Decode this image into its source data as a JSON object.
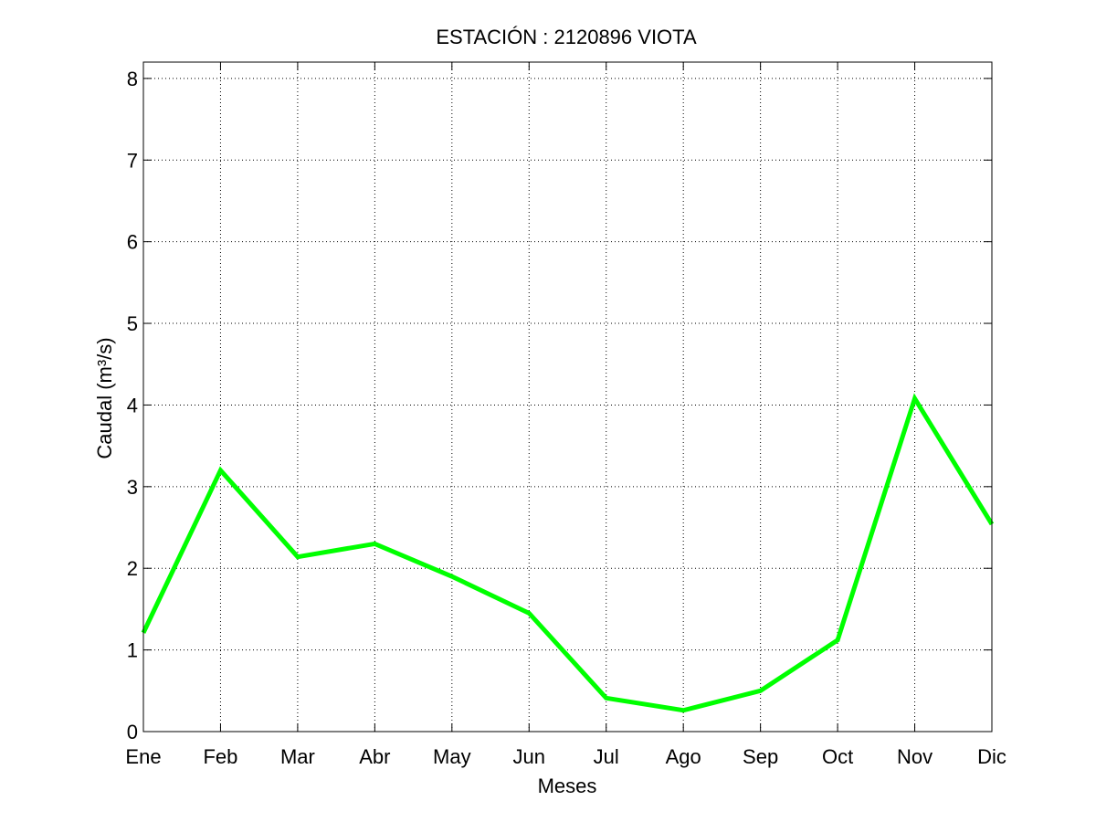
{
  "chart_data": {
    "type": "line",
    "title": "ESTACIÓN :  2120896  VIOTA",
    "xlabel": "Meses",
    "ylabel": "Caudal (m³/s)",
    "categories": [
      "Ene",
      "Feb",
      "Mar",
      "Abr",
      "May",
      "Jun",
      "Jul",
      "Ago",
      "Sep",
      "Oct",
      "Nov",
      "Dic"
    ],
    "series": [
      {
        "values": [
          1.21,
          3.2,
          2.14,
          2.3,
          1.9,
          1.45,
          0.41,
          0.26,
          0.5,
          1.12,
          4.08,
          2.54
        ],
        "color": "#00ff00"
      }
    ],
    "ylim": [
      0,
      8.2
    ],
    "yticks": [
      0,
      1,
      2,
      3,
      4,
      5,
      6,
      7,
      8
    ],
    "grid": true,
    "line_style": "solid",
    "grid_style": "dotted"
  }
}
